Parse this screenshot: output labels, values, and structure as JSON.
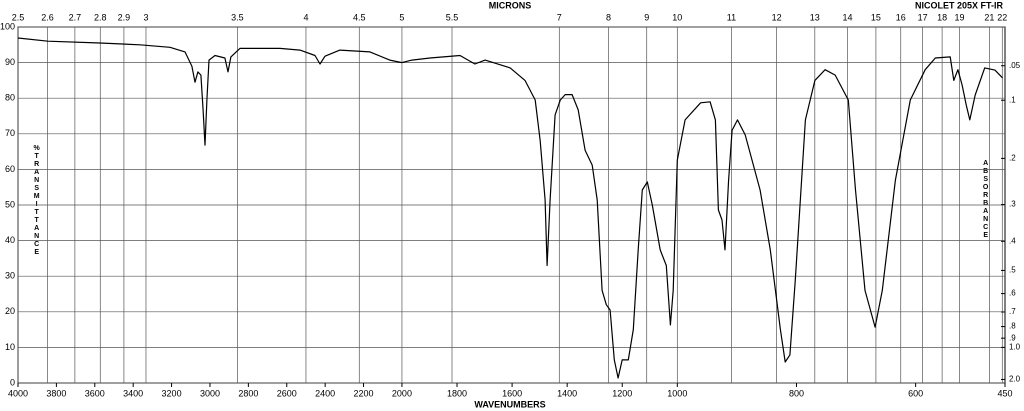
{
  "chart_data": {
    "type": "line",
    "title": "NICOLET 205X FT-IR",
    "x_label": "WAVENUMBERS",
    "x2_label": "MICRONS",
    "y_label": "%TRANSMITTANCE",
    "y2_label": "ABSORBANCE",
    "color": "#000000",
    "grid": true,
    "x": [
      4000,
      3844,
      3573,
      3365,
      3208,
      3130,
      3094,
      3078,
      3063,
      3047,
      3036,
      3026,
      3016,
      3005,
      2974,
      2922,
      2906,
      2891,
      2844,
      2635,
      2531,
      2453,
      2427,
      2401,
      2323,
      2167,
      2063,
      2000,
      1964,
      1898,
      1789,
      1735,
      1698,
      1607,
      1553,
      1516,
      1498,
      1480,
      1473,
      1462,
      1444,
      1425,
      1407,
      1382,
      1360,
      1335,
      1309,
      1291,
      1273,
      1258,
      1244,
      1229,
      1215,
      1200,
      1178,
      1160,
      1142,
      1127,
      1109,
      1091,
      1062,
      1040,
      1025,
      1015,
      1000,
      987,
      961,
      945,
      936,
      931,
      925,
      920,
      914,
      908,
      899,
      886,
      861,
      844,
      827,
      819,
      811,
      802,
      785,
      769,
      752,
      735,
      713,
      701,
      685,
      668,
      656,
      634,
      609,
      584,
      567,
      542,
      536,
      529,
      522,
      515,
      509,
      500,
      484,
      467,
      454
    ],
    "values": [
      96.9,
      96,
      95.5,
      95,
      94.3,
      93,
      89,
      84.5,
      87.4,
      86.5,
      76.7,
      66.8,
      79.5,
      90.7,
      92,
      91.3,
      87.4,
      91.6,
      94,
      94,
      93.5,
      92,
      89.6,
      91.8,
      93.5,
      93,
      90.7,
      90,
      90.7,
      91.3,
      92,
      89.6,
      90.7,
      88.5,
      85,
      79.5,
      68,
      51.4,
      33,
      51.4,
      75.3,
      79.5,
      81,
      81,
      76.7,
      65.4,
      61.2,
      51.4,
      26,
      22,
      20.5,
      6.5,
      1.4,
      6.5,
      6.5,
      15,
      37.4,
      54.2,
      56.5,
      50,
      37.4,
      33,
      16.3,
      26,
      62.6,
      73.9,
      78.7,
      79,
      73.9,
      48.6,
      45.8,
      37.4,
      57,
      71,
      73.9,
      69.7,
      54.2,
      37.4,
      15,
      5.9,
      7.9,
      29,
      73.9,
      85,
      88,
      86.5,
      79.5,
      54.2,
      26,
      15.7,
      26,
      57,
      79.5,
      88,
      91.3,
      91.6,
      85,
      88,
      83.7,
      78,
      73.9,
      80.9,
      88.5,
      87.9,
      85.7
    ],
    "xlim": [
      4000,
      450
    ],
    "xticks": [
      4000,
      3800,
      3600,
      3400,
      3200,
      3000,
      2800,
      2600,
      2400,
      2200,
      2000,
      1800,
      1600,
      1400,
      1200,
      1000,
      800,
      600,
      450
    ],
    "x2ticks": [
      2.5,
      2.6,
      2.7,
      2.8,
      2.9,
      3,
      3.5,
      4,
      4.5,
      5,
      5.5,
      7,
      8,
      9,
      10,
      11,
      12,
      13,
      14,
      15,
      16,
      17,
      18,
      19,
      21,
      22
    ],
    "ylim": [
      0,
      100
    ],
    "yticks": [
      0,
      10,
      20,
      30,
      40,
      50,
      60,
      70,
      80,
      90,
      100
    ],
    "y2ticks": [
      {
        "value": 0.05,
        "label": ".05"
      },
      {
        "value": 0.1,
        "label": ".1"
      },
      {
        "value": 0.2,
        "label": ".2"
      },
      {
        "value": 0.3,
        "label": ".3"
      },
      {
        "value": 0.4,
        "label": ".4"
      },
      {
        "value": 0.5,
        "label": ".5"
      },
      {
        "value": 0.6,
        "label": ".6"
      },
      {
        "value": 0.7,
        "label": ".7"
      },
      {
        "value": 0.8,
        "label": ".8"
      },
      {
        "value": 0.9,
        "label": ".9"
      },
      {
        "value": 1.0,
        "label": "1.0"
      },
      {
        "value": 2.0,
        "label": "2.0"
      }
    ]
  }
}
